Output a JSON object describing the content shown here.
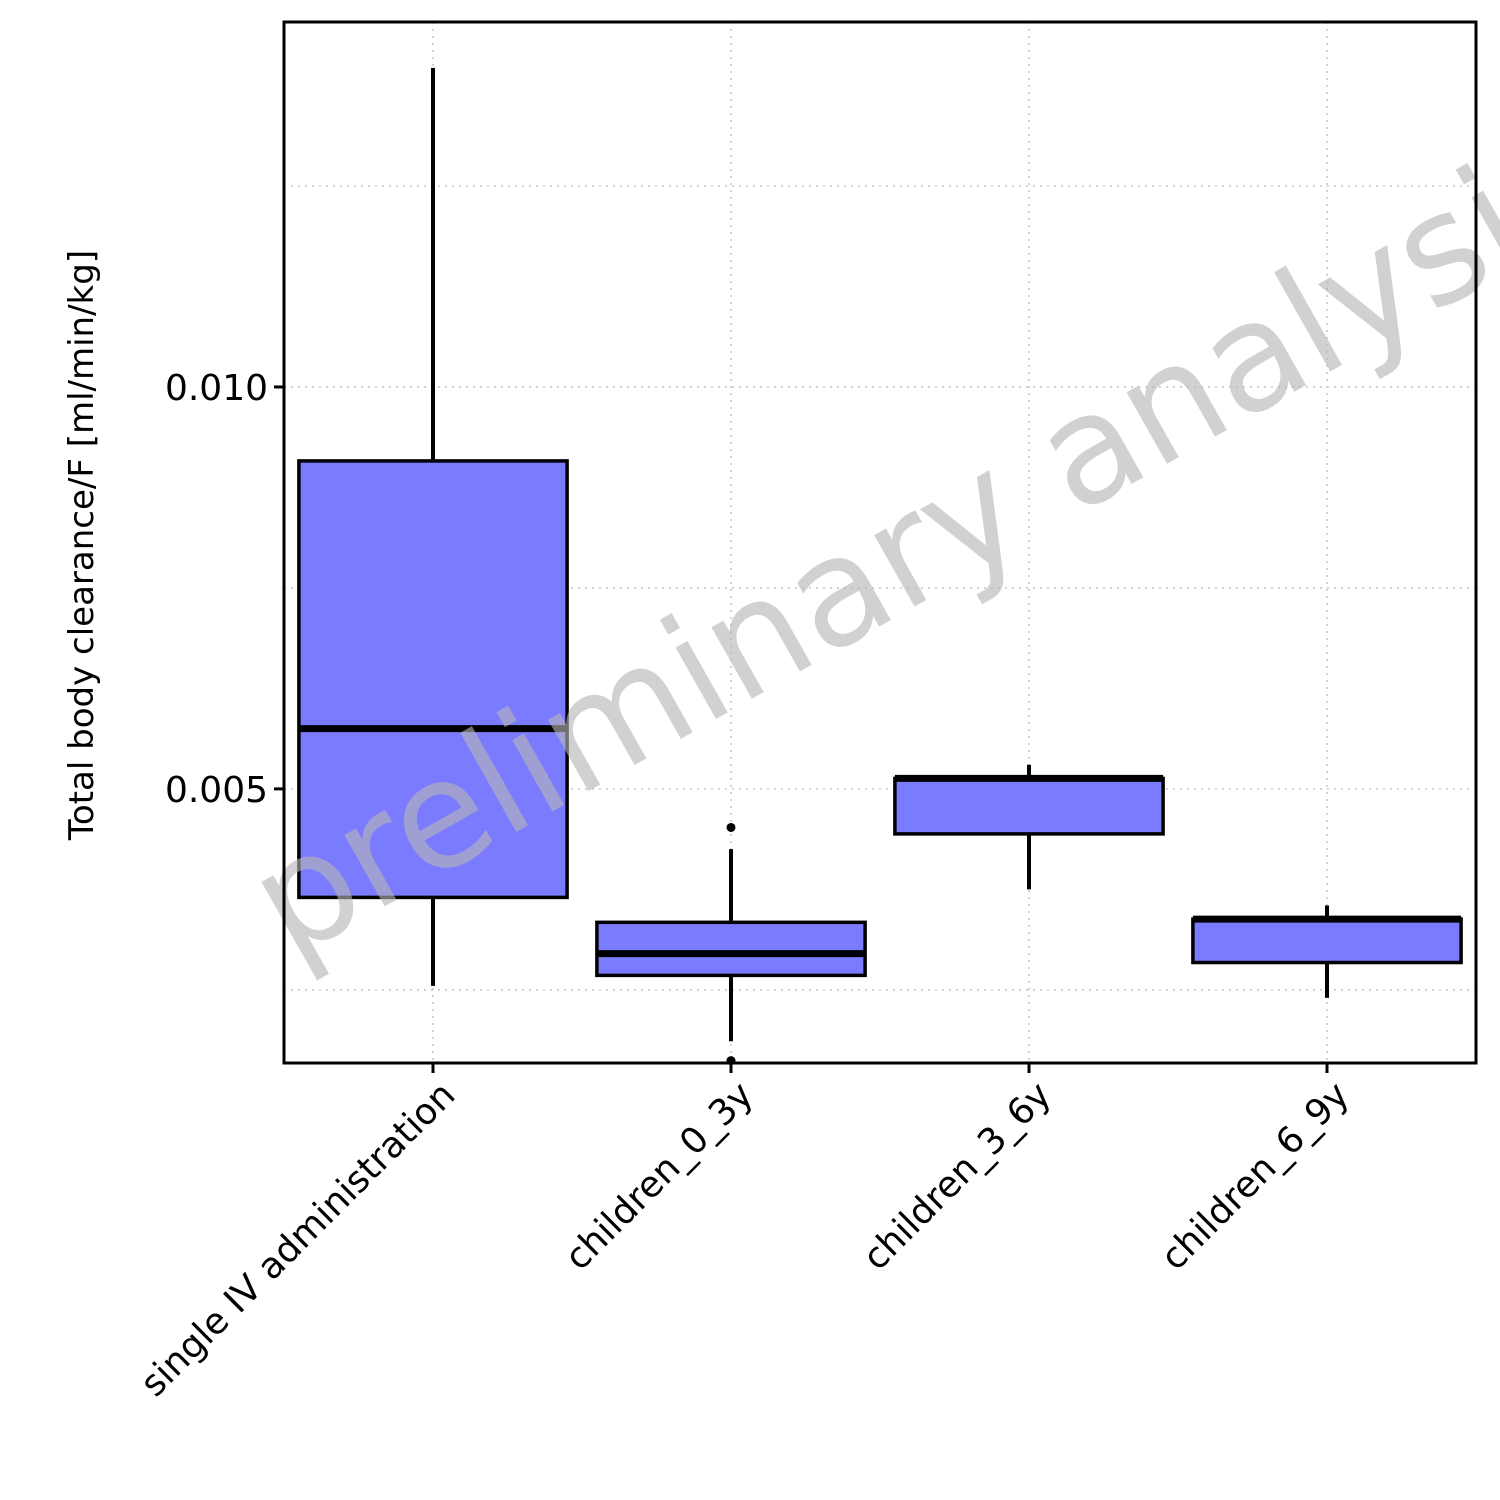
{
  "chart_data": {
    "type": "box",
    "title": "",
    "xlabel": "",
    "ylabel": "Total body clearance/F [ml/min/kg]",
    "watermark": "preliminary analysis",
    "ylim": [
      0.00159,
      0.01454
    ],
    "yticks": [
      0.005,
      0.01
    ],
    "ytick_labels": [
      "0.005",
      "0.010"
    ],
    "y_minor_grid": [
      0.0025,
      0.0075,
      0.0125
    ],
    "grid": "dotted",
    "fill_color": "#7b7bff",
    "categories": [
      "single IV administration",
      "children_0_3y",
      "children_3_6y",
      "children_6_9y"
    ],
    "boxes": [
      {
        "category": "single IV administration",
        "whisker_low": 0.00255,
        "q1": 0.00365,
        "median": 0.00575,
        "q3": 0.00908,
        "whisker_high": 0.01397,
        "outliers": []
      },
      {
        "category": "children_0_3y",
        "whisker_low": 0.00186,
        "q1": 0.00268,
        "median": 0.00295,
        "q3": 0.00334,
        "whisker_high": 0.00425,
        "outliers": [
          0.00162,
          0.00452
        ]
      },
      {
        "category": "children_3_6y",
        "whisker_low": 0.00375,
        "q1": 0.00444,
        "median": 0.00513,
        "q3": 0.00513,
        "whisker_high": 0.0053,
        "outliers": []
      },
      {
        "category": "children_6_9y",
        "whisker_low": 0.0024,
        "q1": 0.00284,
        "median": 0.00338,
        "q3": 0.00338,
        "whisker_high": 0.00355,
        "outliers": []
      }
    ]
  }
}
